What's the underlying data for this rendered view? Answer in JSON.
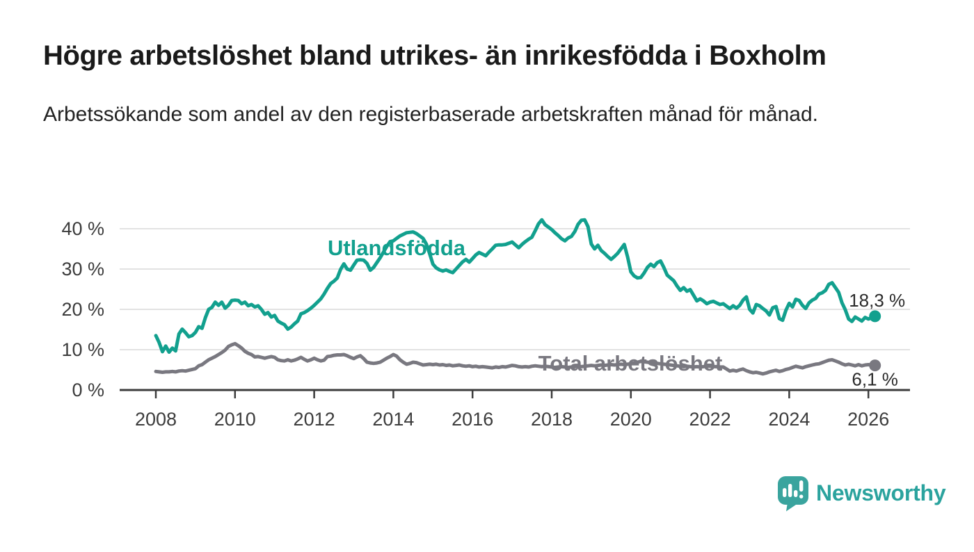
{
  "header": {
    "title": "Högre arbetslöshet bland utrikes- än inrikesfödda i Boxholm",
    "subtitle": "Arbetssökande som andel av den registerbaserade arbetskraften månad för månad."
  },
  "chart_data": {
    "type": "line",
    "title": "Högre arbetslöshet bland utrikes- än inrikesfödda i Boxholm",
    "subtitle": "Arbetssökande som andel av den registerbaserade arbetskraften månad för månad.",
    "x_unit": "month",
    "x_start": "2008-01",
    "x_end": "2026-03",
    "x_tick_labels": [
      "2008",
      "2010",
      "2012",
      "2014",
      "2016",
      "2018",
      "2020",
      "2022",
      "2024",
      "2026"
    ],
    "y_ticks": [
      0,
      10,
      20,
      30,
      40
    ],
    "y_unit": "%",
    "ylim": [
      0,
      44
    ],
    "grid": "horizontal",
    "legend_position": "inline-labels",
    "series": [
      {
        "name": "Utlandsfödda",
        "color": "#12a08e",
        "end_label": "18,3 %",
        "end_value": 18.3,
        "values": [
          13.5,
          11.8,
          9.5,
          10.9,
          9.4,
          10.4,
          9.7,
          13.9,
          15.1,
          14.2,
          13.2,
          13.5,
          14.3,
          15.7,
          15.3,
          17.9,
          20.0,
          20.5,
          21.8,
          21.0,
          21.8,
          20.3,
          21.0,
          22.2,
          22.3,
          22.2,
          21.4,
          21.8,
          20.9,
          21.2,
          20.6,
          20.9,
          20.0,
          18.8,
          19.2,
          18.1,
          18.5,
          17.1,
          16.6,
          16.2,
          15.1,
          15.6,
          16.4,
          17.1,
          18.9,
          19.2,
          19.7,
          20.3,
          21.0,
          21.8,
          22.6,
          23.8,
          25.2,
          26.4,
          27.0,
          27.8,
          29.9,
          31.3,
          30.0,
          29.7,
          31.0,
          32.2,
          32.3,
          32.2,
          31.4,
          29.7,
          30.4,
          31.6,
          32.8,
          34.2,
          35.6,
          36.8,
          37.0,
          37.6,
          38.2,
          38.6,
          39.0,
          39.1,
          39.2,
          38.8,
          38.2,
          37.6,
          36.2,
          33.8,
          31.2,
          30.3,
          29.8,
          29.5,
          29.8,
          29.4,
          29.1,
          30.0,
          30.9,
          31.8,
          32.4,
          31.7,
          32.6,
          33.5,
          34.1,
          33.7,
          33.3,
          34.2,
          35.0,
          35.9,
          36.0,
          36.0,
          36.1,
          36.4,
          36.7,
          36.0,
          35.3,
          36.1,
          36.8,
          37.4,
          37.9,
          39.5,
          41.2,
          42.2,
          41.0,
          40.4,
          39.8,
          39.0,
          38.3,
          37.5,
          37.0,
          37.7,
          38.1,
          39.3,
          41.1,
          42.1,
          42.2,
          40.5,
          36.2,
          35.0,
          35.9,
          34.6,
          33.9,
          33.1,
          32.4,
          33.1,
          33.9,
          35.0,
          36.1,
          33.0,
          29.3,
          28.3,
          27.8,
          27.9,
          29.0,
          30.4,
          31.2,
          30.6,
          31.6,
          32.0,
          30.4,
          28.5,
          27.8,
          27.1,
          25.8,
          24.7,
          25.4,
          24.5,
          24.9,
          23.5,
          22.1,
          22.6,
          22.1,
          21.4,
          21.8,
          22.0,
          21.6,
          21.2,
          21.4,
          20.8,
          20.2,
          20.9,
          20.3,
          21.0,
          22.3,
          23.1,
          20.0,
          19.1,
          21.2,
          20.9,
          20.2,
          19.6,
          18.6,
          20.4,
          20.7,
          17.7,
          17.3,
          19.8,
          21.5,
          20.6,
          22.5,
          22.2,
          21.0,
          20.2,
          21.6,
          22.3,
          22.7,
          23.8,
          24.1,
          24.7,
          26.2,
          26.6,
          25.4,
          24.2,
          21.6,
          19.9,
          17.6,
          17.0,
          18.1,
          17.6,
          17.1,
          18.0,
          17.6,
          17.9,
          18.3
        ]
      },
      {
        "name": "Total arbetslöshet",
        "color": "#797880",
        "end_label": "6,1 %",
        "end_value": 6.1,
        "values": [
          4.6,
          4.5,
          4.4,
          4.5,
          4.5,
          4.6,
          4.5,
          4.7,
          4.8,
          4.7,
          4.9,
          5.1,
          5.3,
          6.0,
          6.3,
          6.9,
          7.5,
          7.9,
          8.3,
          8.8,
          9.3,
          9.9,
          10.8,
          11.2,
          11.5,
          11.0,
          10.4,
          9.6,
          9.1,
          8.8,
          8.2,
          8.3,
          8.1,
          7.9,
          8.1,
          8.3,
          8.1,
          7.5,
          7.3,
          7.2,
          7.5,
          7.2,
          7.4,
          7.7,
          8.1,
          7.6,
          7.2,
          7.5,
          7.9,
          7.5,
          7.2,
          7.4,
          8.3,
          8.4,
          8.6,
          8.7,
          8.7,
          8.8,
          8.5,
          8.1,
          7.8,
          8.2,
          8.5,
          7.8,
          6.9,
          6.7,
          6.6,
          6.7,
          6.9,
          7.4,
          7.9,
          8.3,
          8.8,
          8.4,
          7.5,
          6.9,
          6.4,
          6.6,
          6.9,
          6.8,
          6.5,
          6.2,
          6.3,
          6.4,
          6.3,
          6.4,
          6.2,
          6.3,
          6.1,
          6.2,
          6.0,
          6.1,
          6.2,
          6.0,
          5.9,
          6.0,
          5.8,
          5.9,
          5.7,
          5.8,
          5.7,
          5.6,
          5.5,
          5.7,
          5.6,
          5.8,
          5.7,
          5.9,
          6.1,
          6.0,
          5.8,
          5.7,
          5.8,
          5.7,
          5.9,
          6.0,
          5.9,
          5.8,
          5.9,
          5.8,
          5.7,
          5.6,
          5.7,
          5.8,
          5.7,
          5.6,
          5.7,
          5.8,
          5.9,
          5.8,
          5.9,
          6.0,
          6.1,
          6.0,
          6.1,
          6.2,
          6.1,
          6.2,
          6.3,
          6.2,
          6.3,
          6.4,
          6.3,
          6.4,
          6.5,
          6.7,
          6.9,
          7.1,
          7.0,
          6.9,
          6.8,
          6.7,
          6.6,
          6.5,
          6.4,
          6.3,
          6.2,
          6.1,
          6.0,
          5.9,
          5.8,
          5.9,
          5.8,
          5.7,
          5.8,
          5.7,
          5.8,
          5.9,
          5.9,
          5.8,
          5.8,
          5.7,
          5.7,
          5.2,
          4.7,
          4.9,
          4.7,
          5.0,
          5.2,
          4.8,
          4.5,
          4.3,
          4.4,
          4.2,
          4.0,
          4.2,
          4.5,
          4.7,
          4.9,
          4.6,
          4.8,
          5.1,
          5.3,
          5.6,
          5.9,
          5.7,
          5.5,
          5.8,
          6.0,
          6.2,
          6.4,
          6.5,
          6.8,
          7.1,
          7.4,
          7.5,
          7.2,
          6.9,
          6.5,
          6.2,
          6.4,
          6.2,
          6.0,
          6.3,
          6.0,
          6.2,
          6.3,
          6.2,
          6.1
        ]
      }
    ],
    "colors": {
      "grid": "#d9d9d9",
      "axis": "#3c3c3c",
      "tick_text": "#3c3c3c",
      "annotation_text": "#2b2b2b"
    }
  },
  "branding": {
    "wordmark": "Newsworthy",
    "logo_icon": "newsworthy-bar-chart-bubble-icon",
    "brand_color": "#2ba39e"
  }
}
